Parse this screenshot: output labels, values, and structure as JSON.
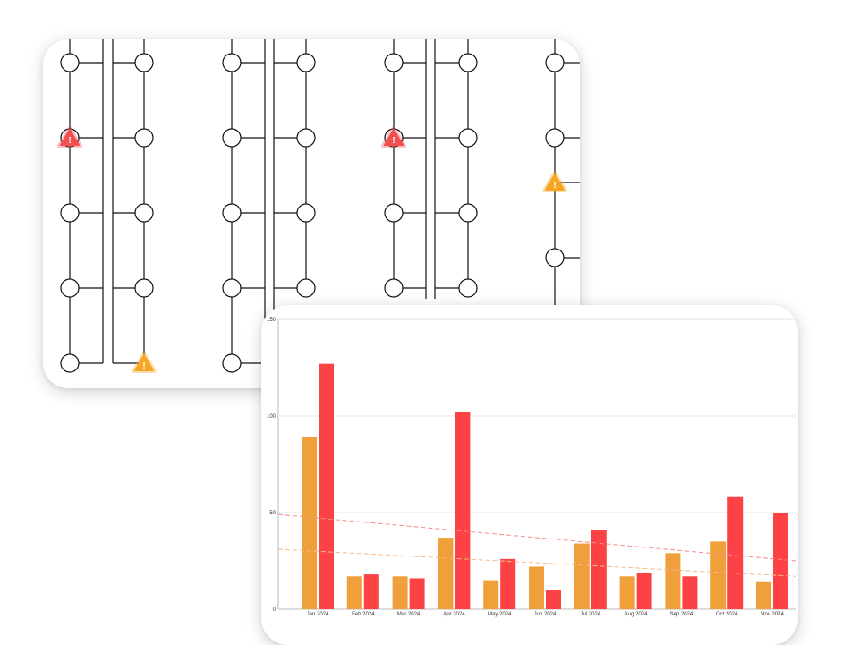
{
  "colors": {
    "alert_critical": "#f0504f",
    "alert_warning": "#f5a623",
    "line": "#111111",
    "node_fill": "#ffffff",
    "bar_series_1": "#f0a03a",
    "bar_series_2": "#fc4244",
    "trend_series_1": "#f5b98a",
    "trend_series_2": "#f78a8a",
    "grid": "#e6e6e6"
  },
  "diagram": {
    "alerts": [
      {
        "severity": "critical",
        "icon": "warning-triangle-icon",
        "glyph": "!"
      },
      {
        "severity": "warning",
        "icon": "warning-triangle-icon",
        "glyph": "!"
      },
      {
        "severity": "critical",
        "icon": "warning-triangle-icon",
        "glyph": "!"
      },
      {
        "severity": "warning",
        "icon": "warning-triangle-icon",
        "glyph": "!"
      }
    ]
  },
  "chart_data": {
    "type": "bar",
    "title": "",
    "xlabel": "",
    "ylabel": "",
    "categories": [
      "Jan 2024",
      "Feb 2024",
      "Mar 2024",
      "Apr 2024",
      "May 2024",
      "Jun 2024",
      "Jul 2024",
      "Aug 2024",
      "Sep 2024",
      "Oct 2024",
      "Nov 2024"
    ],
    "series": [
      {
        "values": [
          89,
          17,
          17,
          37,
          15,
          22,
          34,
          17,
          29,
          35,
          14
        ],
        "color": "#f0a03a"
      },
      {
        "values": [
          127,
          18,
          16,
          102,
          26,
          10,
          41,
          19,
          17,
          58,
          50
        ],
        "color": "#fc4244"
      }
    ],
    "trendlines": [
      {
        "series_index": 0,
        "start": 31,
        "end": 17,
        "style": "dashed",
        "color": "#f5b98a"
      },
      {
        "series_index": 1,
        "start": 49,
        "end": 25,
        "style": "dashed",
        "color": "#f78a8a"
      }
    ],
    "yticks": [
      0,
      50,
      100,
      150
    ],
    "ylim": [
      0,
      150
    ],
    "grid": true,
    "legend": "none"
  }
}
